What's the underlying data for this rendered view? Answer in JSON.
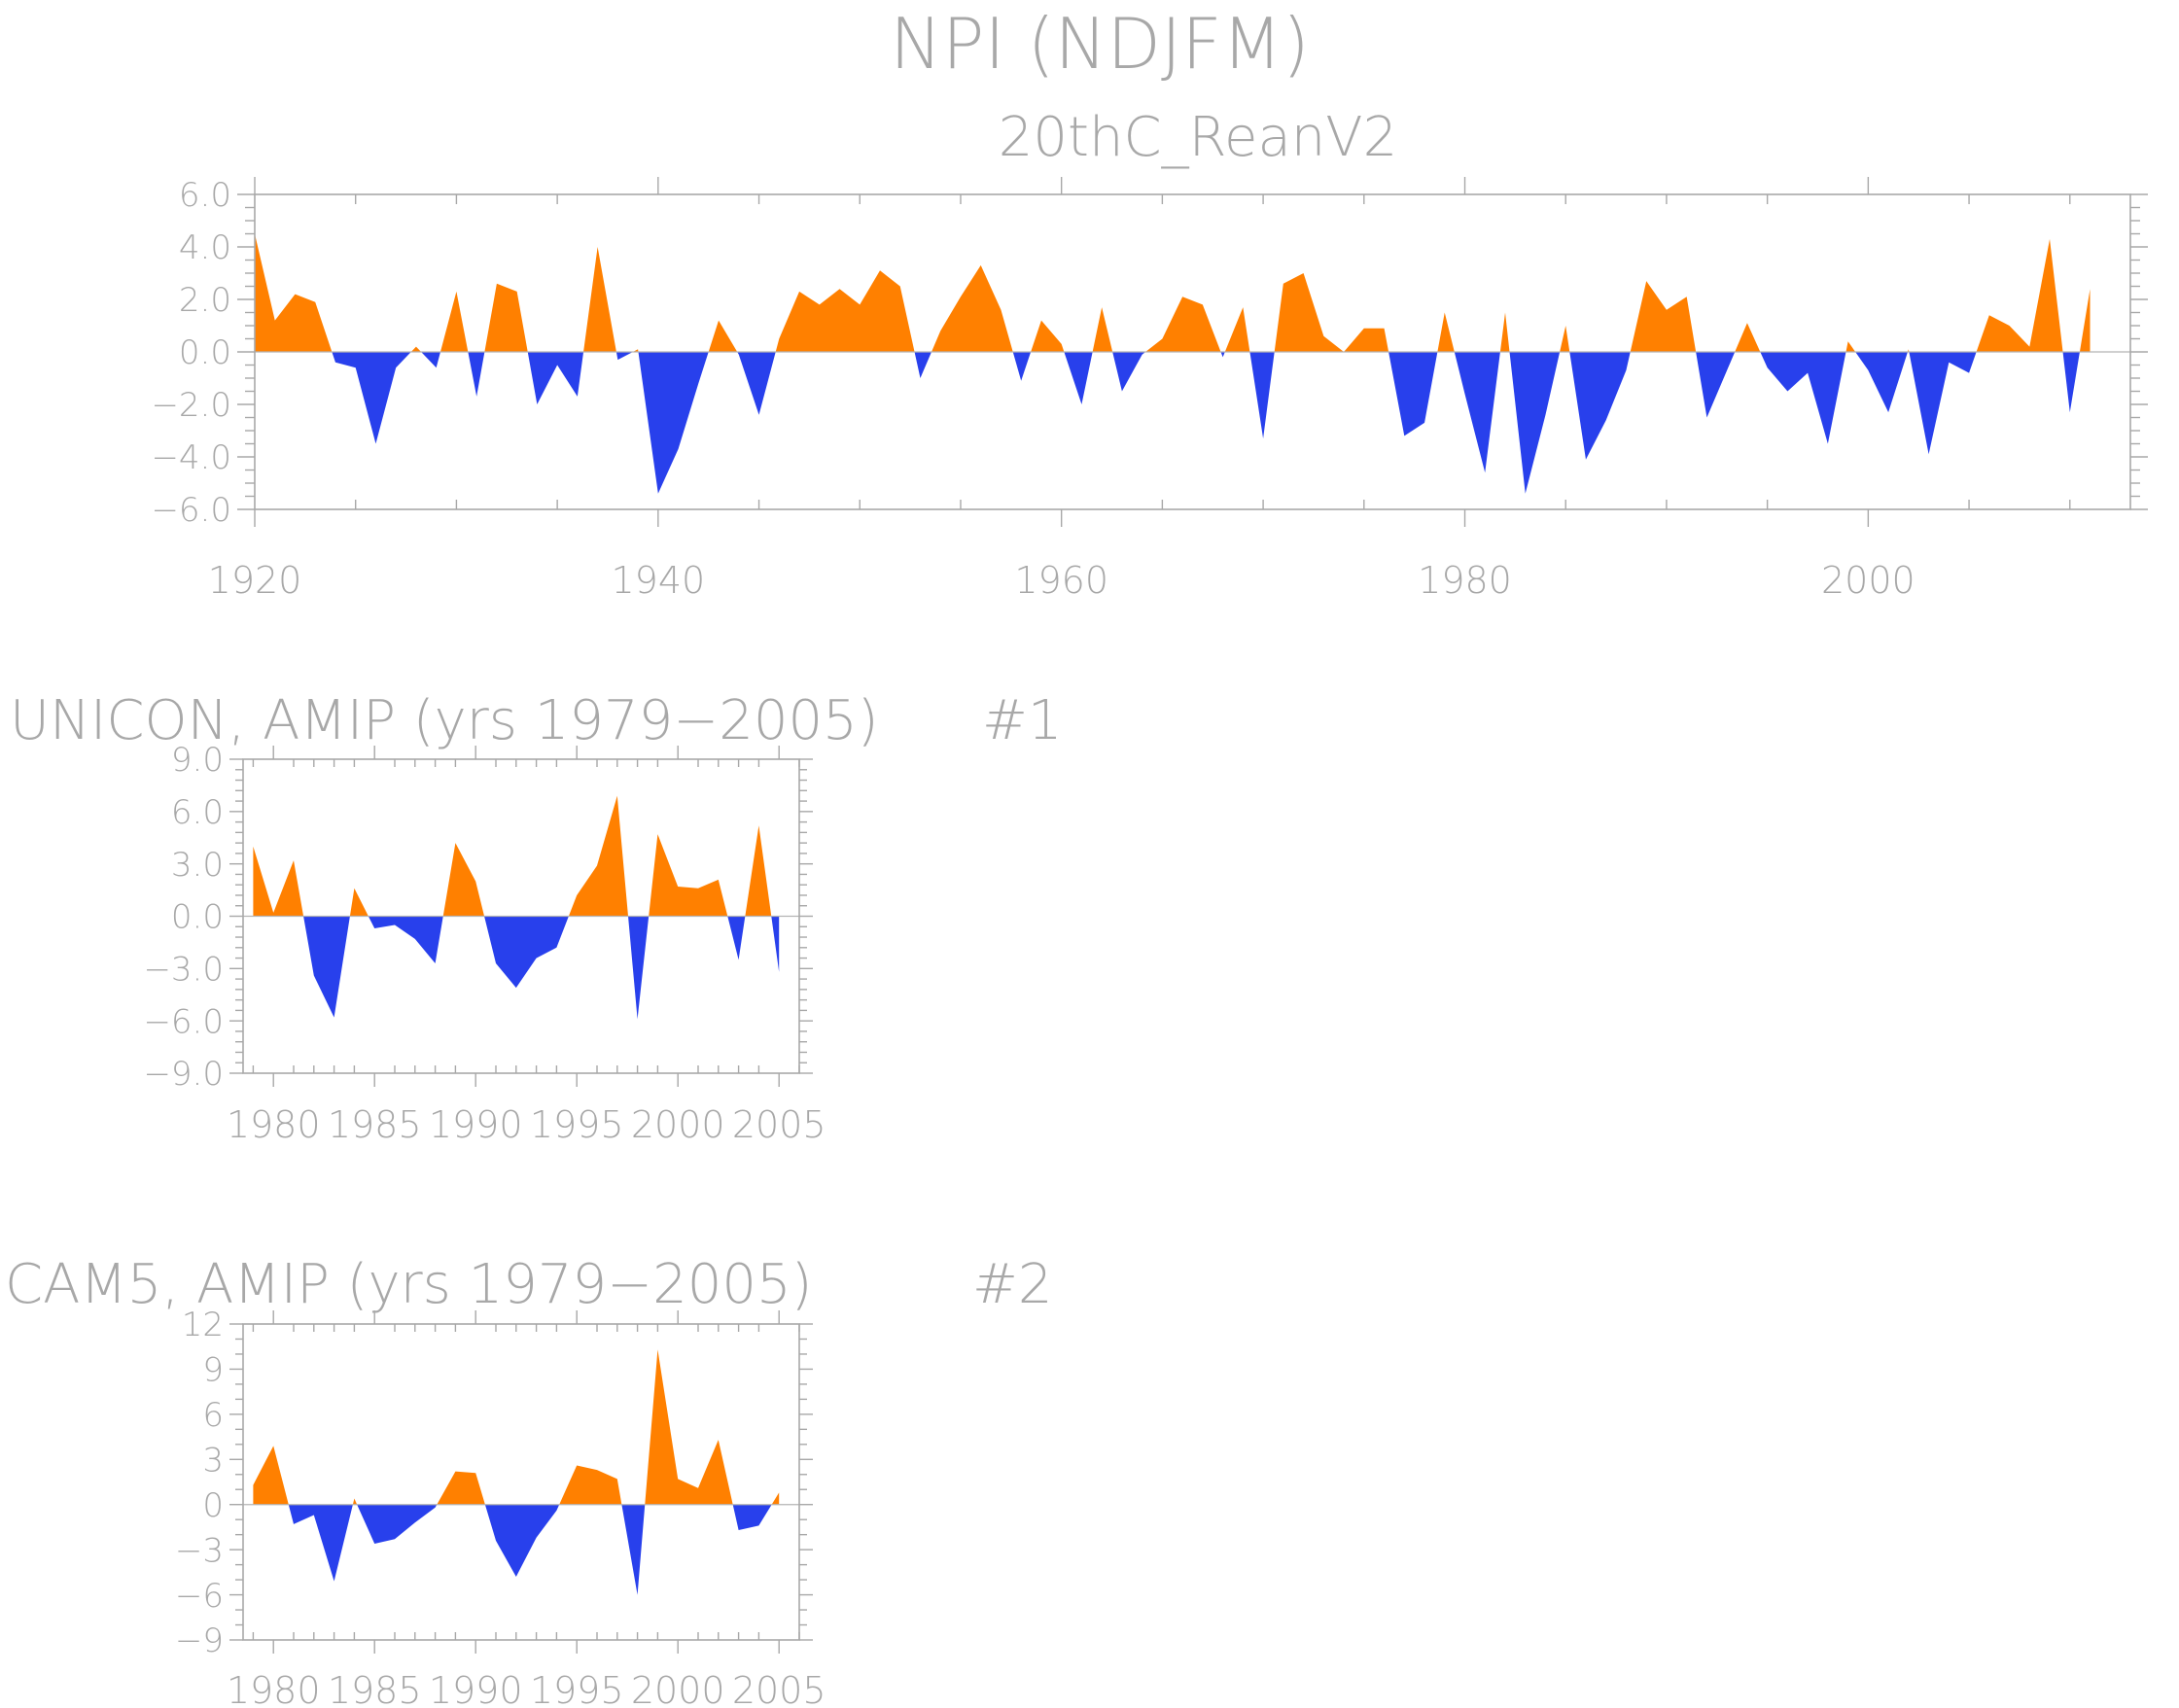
{
  "title": "NPI (NDJFM)",
  "colors": {
    "positive": "#ff8000",
    "negative": "#2840ec",
    "text": "#a8a8a8",
    "axis": "#a8a8a8"
  },
  "chart_data": [
    {
      "type": "area",
      "subtitle": "20thC_ReanV2",
      "tag": "",
      "x": [
        1920,
        1921,
        1922,
        1923,
        1924,
        1925,
        1926,
        1927,
        1928,
        1929,
        1930,
        1931,
        1932,
        1933,
        1934,
        1935,
        1936,
        1937,
        1938,
        1939,
        1940,
        1941,
        1942,
        1943,
        1944,
        1945,
        1946,
        1947,
        1948,
        1949,
        1950,
        1951,
        1952,
        1953,
        1954,
        1955,
        1956,
        1957,
        1958,
        1959,
        1960,
        1961,
        1962,
        1963,
        1964,
        1965,
        1966,
        1967,
        1968,
        1969,
        1970,
        1971,
        1972,
        1973,
        1974,
        1975,
        1976,
        1977,
        1978,
        1979,
        1980,
        1981,
        1982,
        1983,
        1984,
        1985,
        1986,
        1987,
        1988,
        1989,
        1990,
        1991,
        1992,
        1993,
        1994,
        1995,
        1996,
        1997,
        1998,
        1999,
        2000,
        2001,
        2002,
        2003,
        2004,
        2005,
        2006,
        2007,
        2008,
        2009,
        2010,
        2011
      ],
      "values": [
        4.5,
        1.2,
        2.2,
        1.9,
        -0.4,
        -0.6,
        -3.5,
        -0.6,
        0.2,
        -0.6,
        2.3,
        -1.7,
        2.6,
        2.3,
        -2.0,
        -0.5,
        -1.7,
        4.0,
        -0.3,
        0.1,
        -5.4,
        -3.7,
        -1.2,
        1.2,
        -0.1,
        -2.4,
        0.5,
        2.3,
        1.8,
        2.4,
        1.8,
        3.1,
        2.5,
        -1.0,
        0.8,
        2.1,
        3.3,
        1.6,
        -1.1,
        1.2,
        0.3,
        -2.0,
        1.7,
        -1.5,
        -0.1,
        0.5,
        2.1,
        1.8,
        -0.2,
        1.7,
        -3.3,
        2.6,
        3.0,
        0.6,
        0.0,
        0.9,
        0.9,
        -3.2,
        -2.7,
        1.5,
        -1.6,
        -4.6,
        1.5,
        -5.4,
        -2.4,
        1.0,
        -4.1,
        -2.6,
        -0.7,
        2.7,
        1.6,
        2.1,
        -2.5,
        -0.7,
        1.1,
        -0.6,
        -1.5,
        -0.8,
        -3.5,
        0.4,
        -0.7,
        -2.3,
        0.1,
        -3.9,
        -0.4,
        -0.8,
        1.4,
        1.0,
        0.2,
        4.3,
        -2.3,
        2.4
      ],
      "xticks": [
        1920,
        1940,
        1960,
        1980,
        2000
      ],
      "xtick_labels": [
        "1920",
        "1940",
        "1960",
        "1980",
        "2000"
      ],
      "yticks": [
        -6,
        -4,
        -2,
        0,
        2,
        4,
        6
      ],
      "ytick_labels": [
        "−6.0",
        "−4.0",
        "−2.0",
        "0.0",
        "2.0",
        "4.0",
        "6.0"
      ],
      "xlim": [
        1920,
        2013
      ],
      "ylim": [
        -6,
        6
      ]
    },
    {
      "type": "area",
      "subtitle": "UNICON, AMIP (yrs 1979−2005)",
      "tag": "#1",
      "x": [
        1979,
        1980,
        1981,
        1982,
        1983,
        1984,
        1985,
        1986,
        1987,
        1988,
        1989,
        1990,
        1991,
        1992,
        1993,
        1994,
        1995,
        1996,
        1997,
        1998,
        1999,
        2000,
        2001,
        2002,
        2003,
        2004,
        2005
      ],
      "values": [
        4.0,
        0.2,
        3.2,
        -3.4,
        -5.8,
        1.6,
        -0.7,
        -0.5,
        -1.3,
        -2.7,
        4.2,
        2.0,
        -2.7,
        -4.1,
        -2.4,
        -1.8,
        1.2,
        2.9,
        6.9,
        -5.9,
        4.7,
        1.7,
        1.6,
        2.1,
        -2.5,
        5.2,
        -3.2
      ],
      "xticks": [
        1980,
        1985,
        1990,
        1995,
        2000,
        2005
      ],
      "xtick_labels": [
        "1980",
        "1985",
        "1990",
        "1995",
        "2000",
        "2005"
      ],
      "yticks": [
        -9,
        -6,
        -3,
        0,
        3,
        6,
        9
      ],
      "ytick_labels": [
        "−9.0",
        "−6.0",
        "−3.0",
        "0.0",
        "3.0",
        "6.0",
        "9.0"
      ],
      "xlim": [
        1978.5,
        2006
      ],
      "ylim": [
        -9,
        9
      ]
    },
    {
      "type": "area",
      "subtitle": "CAM5, AMIP (yrs 1979−2005)",
      "tag": "#2",
      "x": [
        1979,
        1980,
        1981,
        1982,
        1983,
        1984,
        1985,
        1986,
        1987,
        1988,
        1989,
        1990,
        1991,
        1992,
        1993,
        1994,
        1995,
        1996,
        1997,
        1998,
        1999,
        2000,
        2001,
        2002,
        2003,
        2004,
        2005
      ],
      "values": [
        1.3,
        3.9,
        -1.3,
        -0.7,
        -5.1,
        0.4,
        -2.6,
        -2.3,
        -1.2,
        -0.2,
        2.2,
        2.1,
        -2.4,
        -4.8,
        -2.2,
        -0.4,
        2.6,
        2.3,
        1.7,
        -6.0,
        10.3,
        1.7,
        1.1,
        4.3,
        -1.7,
        -1.4,
        0.8
      ],
      "xticks": [
        1980,
        1985,
        1990,
        1995,
        2000,
        2005
      ],
      "xtick_labels": [
        "1980",
        "1985",
        "1990",
        "1995",
        "2000",
        "2005"
      ],
      "yticks": [
        -9,
        -6,
        -3,
        0,
        3,
        6,
        9,
        12
      ],
      "ytick_labels": [
        "−9",
        "−6",
        "−3",
        "0",
        "3",
        "6",
        "9",
        "12"
      ],
      "xlim": [
        1978.5,
        2006
      ],
      "ylim": [
        -9,
        12
      ]
    }
  ]
}
